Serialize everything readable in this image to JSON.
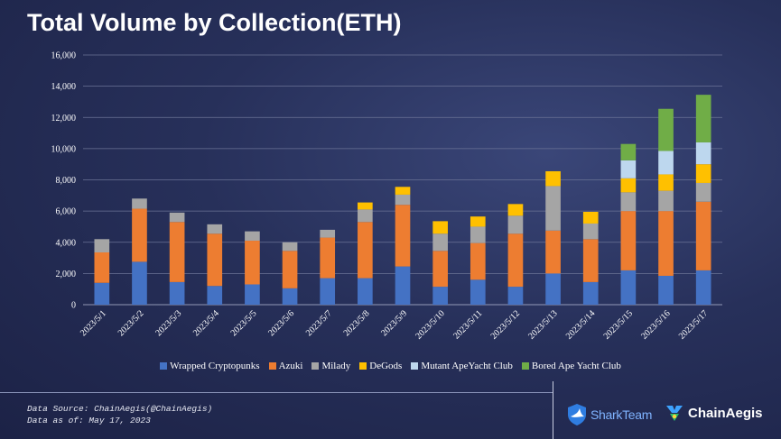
{
  "chart_data": {
    "type": "bar",
    "stacked": true,
    "title": "Total Volume by Collection(ETH)",
    "xlabel": "",
    "ylabel": "",
    "ylim": [
      0,
      16000
    ],
    "yticks": [
      0,
      2000,
      4000,
      6000,
      8000,
      10000,
      12000,
      14000,
      16000
    ],
    "ytick_labels": [
      "0",
      "2,000",
      "4,000",
      "6,000",
      "8,000",
      "10,000",
      "12,000",
      "14,000",
      "16,000"
    ],
    "grid": true,
    "legend_position": "bottom",
    "categories": [
      "2023/5/1",
      "2023/5/2",
      "2023/5/3",
      "2023/5/4",
      "2023/5/5",
      "2023/5/6",
      "2023/5/7",
      "2023/5/8",
      "2023/5/9",
      "2023/5/10",
      "2023/5/11",
      "2023/5/12",
      "2023/5/13",
      "2023/5/14",
      "2023/5/15",
      "2023/5/16",
      "2023/5/17"
    ],
    "series": [
      {
        "name": "Wrapped Cryptopunks",
        "color": "#4472c4",
        "values": [
          1400,
          2750,
          1450,
          1200,
          1300,
          1050,
          1700,
          1700,
          2450,
          1150,
          1600,
          1150,
          2000,
          1450,
          2200,
          1850,
          2200
        ]
      },
      {
        "name": "Azuki",
        "color": "#ed7d31",
        "values": [
          1950,
          3400,
          3850,
          3350,
          2800,
          2400,
          2600,
          3600,
          3950,
          2300,
          2350,
          3400,
          2750,
          2750,
          3800,
          4150,
          4400
        ]
      },
      {
        "name": "Milady",
        "color": "#a5a5a5",
        "values": [
          850,
          650,
          600,
          600,
          600,
          550,
          500,
          800,
          650,
          1100,
          1050,
          1150,
          2850,
          1000,
          1200,
          1300,
          1200
        ]
      },
      {
        "name": "DeGods",
        "color": "#ffc000",
        "values": [
          0,
          0,
          0,
          0,
          0,
          0,
          0,
          450,
          500,
          800,
          650,
          750,
          950,
          750,
          900,
          1050,
          1200
        ]
      },
      {
        "name": "Mutant ApeYacht Club",
        "color": "#bdd7ee",
        "values": [
          0,
          0,
          0,
          0,
          0,
          0,
          0,
          0,
          0,
          0,
          0,
          0,
          0,
          0,
          1150,
          1500,
          1400
        ]
      },
      {
        "name": "Bored Ape Yacht Club",
        "color": "#70ad47",
        "values": [
          0,
          0,
          0,
          0,
          0,
          0,
          0,
          0,
          0,
          0,
          0,
          0,
          0,
          0,
          1050,
          2700,
          3050
        ]
      }
    ]
  },
  "footer": {
    "source": "Data Source: ChainAegis(@ChainAegis)",
    "asof": "Data as of: May 17, 2023"
  },
  "logos": {
    "shark": "SharkTeam",
    "aegis": "ChainAegis"
  }
}
